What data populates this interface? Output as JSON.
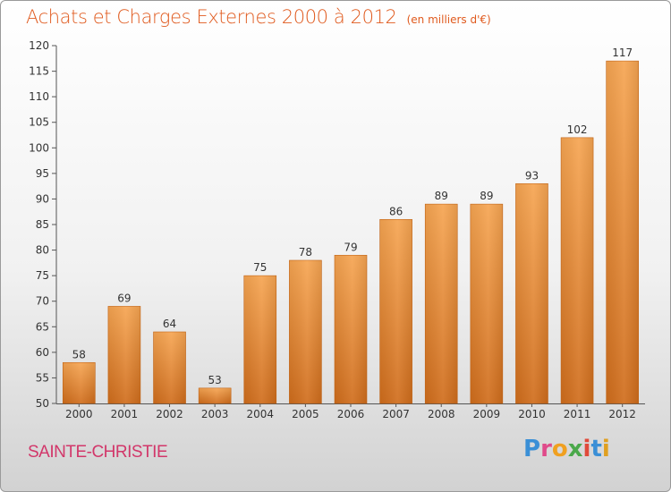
{
  "title": "Achats et Charges Externes 2000 à 2012",
  "subtitle": "(en milliers d'€)",
  "commune": "SAINTE-CHRISTIE",
  "logo": {
    "text": "Proxiti",
    "colors": [
      "#3a8fd6",
      "#e04a8a",
      "#f0a020",
      "#4aa84a",
      "#e04a3a",
      "#3a8fd6",
      "#e0a020"
    ]
  },
  "colors": {
    "title": "#e05a1e",
    "commune": "#d2376a",
    "bar_light": "#f6a552",
    "bar_dark": "#d06d1c"
  },
  "chart_data": {
    "type": "bar",
    "title": "Achats et Charges Externes 2000 à 2012",
    "subtitle": "(en milliers d'€)",
    "categories": [
      "2000",
      "2001",
      "2002",
      "2003",
      "2004",
      "2005",
      "2006",
      "2007",
      "2008",
      "2009",
      "2010",
      "2011",
      "2012"
    ],
    "values": [
      58,
      69,
      64,
      53,
      75,
      78,
      79,
      86,
      89,
      89,
      93,
      102,
      117
    ],
    "ylim": [
      50,
      120
    ],
    "yticks": [
      50,
      55,
      60,
      65,
      70,
      75,
      80,
      85,
      90,
      95,
      100,
      105,
      110,
      115,
      120
    ],
    "grid": false,
    "xlabel": "",
    "ylabel": ""
  }
}
